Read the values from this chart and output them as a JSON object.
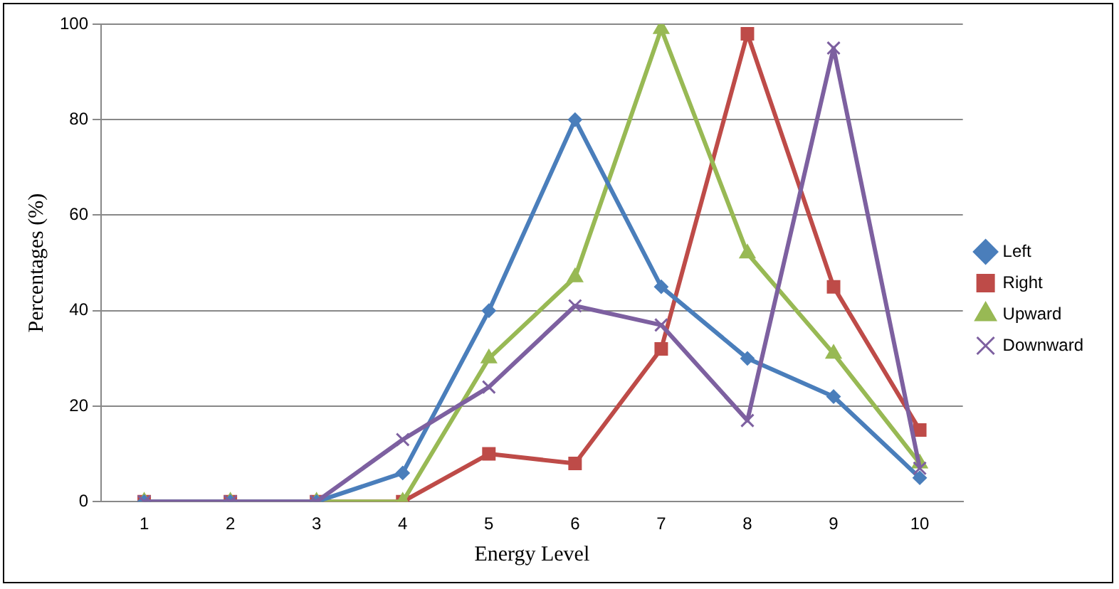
{
  "chart_data": {
    "type": "line",
    "xlabel": "Energy Level",
    "ylabel": "Percentages (%)",
    "categories": [
      "1",
      "2",
      "3",
      "4",
      "5",
      "6",
      "7",
      "8",
      "9",
      "10"
    ],
    "ylim": [
      0,
      100
    ],
    "yticks": [
      0,
      20,
      40,
      60,
      80,
      100
    ],
    "grid": "y",
    "legend": "right",
    "series": [
      {
        "name": "Left",
        "color": "#4a7ebb",
        "marker": "diamond",
        "values": [
          0,
          0,
          0,
          6,
          40,
          80,
          45,
          30,
          22,
          5
        ]
      },
      {
        "name": "Right",
        "color": "#be4b48",
        "marker": "square",
        "values": [
          0,
          0,
          0,
          0,
          10,
          8,
          32,
          98,
          45,
          15
        ]
      },
      {
        "name": "Upward",
        "color": "#98b954",
        "marker": "triangle",
        "values": [
          0,
          0,
          0,
          0,
          30,
          47,
          99,
          52,
          31,
          8
        ]
      },
      {
        "name": "Downward",
        "color": "#7d60a0",
        "marker": "cross",
        "values": [
          0,
          0,
          0,
          13,
          24,
          41,
          37,
          17,
          95,
          7
        ]
      }
    ]
  }
}
